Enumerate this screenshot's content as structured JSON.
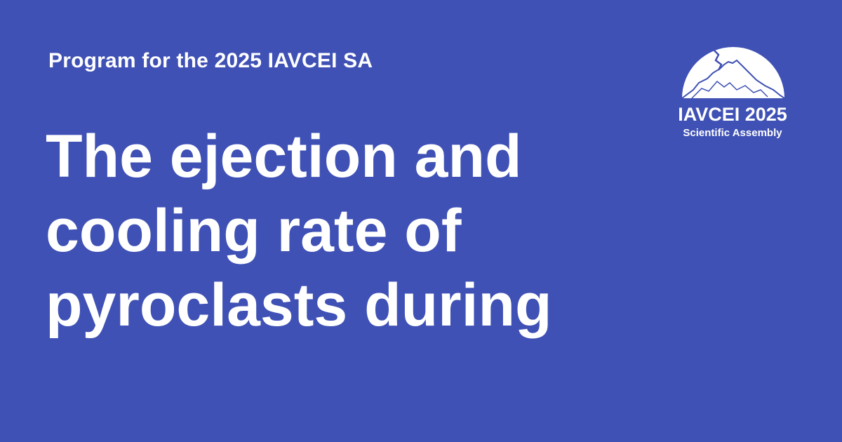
{
  "header": {
    "eyebrow": "Program for the 2025 IAVCEI SA"
  },
  "title": {
    "lines": [
      "The ejection and",
      "cooling rate of",
      "pyroclasts during"
    ]
  },
  "logo": {
    "name": "iavcei-volcano-logo",
    "line1": "IAVCEI 2025",
    "line2": "Scientific Assembly"
  },
  "colors": {
    "background": "#3f51b5",
    "text": "#ffffff"
  }
}
